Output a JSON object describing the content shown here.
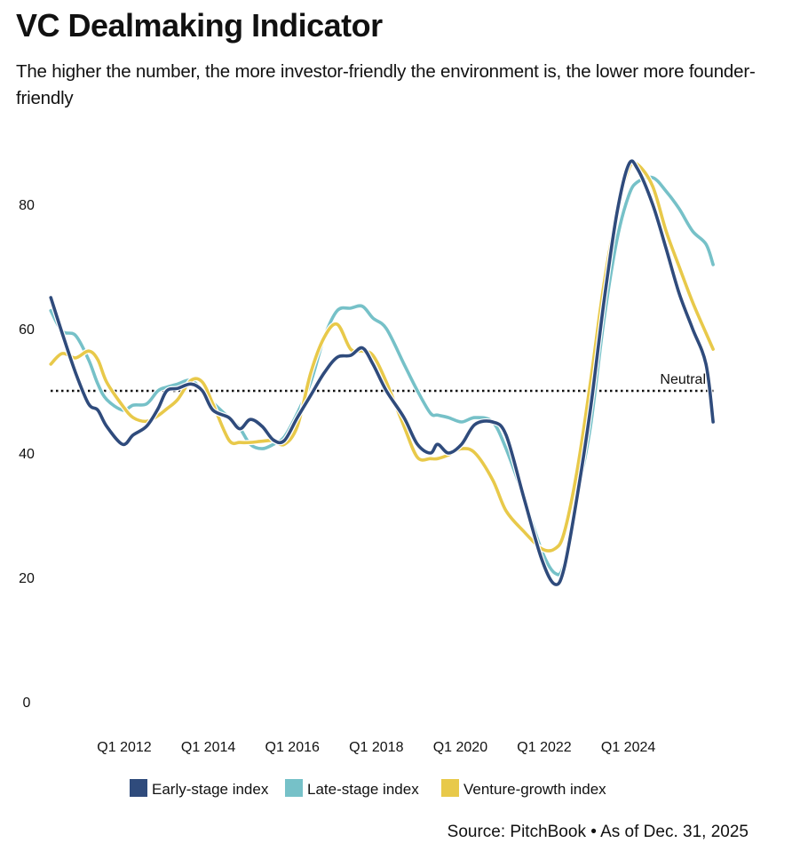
{
  "chart_data": {
    "type": "line",
    "title": "VC Dealmaking Indicator",
    "subtitle": "The higher the number, the more investor-friendly the environment is, the lower more founder-friendly",
    "xlabel": "",
    "ylabel": "",
    "ylim": [
      0,
      90
    ],
    "xlim": [
      2010.25,
      2026.02
    ],
    "yticks": [
      0,
      20,
      40,
      60,
      80
    ],
    "xticks": [
      {
        "value": 2012,
        "label": "Q1 2012"
      },
      {
        "value": 2014,
        "label": "Q1 2014"
      },
      {
        "value": 2016,
        "label": "Q1 2016"
      },
      {
        "value": 2018,
        "label": "Q1 2018"
      },
      {
        "value": 2020,
        "label": "Q1 2020"
      },
      {
        "value": 2022,
        "label": "Q1 2022"
      },
      {
        "value": 2024,
        "label": "Q1 2024"
      }
    ],
    "grid": false,
    "legend_position": "bottom",
    "reference_line": {
      "value": 50,
      "label": "Neutral",
      "color": "#111111"
    },
    "x": [
      2010.25,
      2010.52,
      2010.84,
      2011.15,
      2011.37,
      2011.58,
      2011.96,
      2012.21,
      2012.53,
      2012.8,
      2013.01,
      2013.27,
      2013.59,
      2013.86,
      2014.11,
      2014.49,
      2014.75,
      2015.0,
      2015.28,
      2015.55,
      2015.81,
      2016.12,
      2016.44,
      2016.76,
      2017.07,
      2017.39,
      2017.67,
      2017.92,
      2018.24,
      2018.66,
      2018.98,
      2019.29,
      2019.46,
      2019.72,
      2020.03,
      2020.35,
      2020.77,
      2021.09,
      2021.51,
      2021.94,
      2022.25,
      2022.47,
      2022.78,
      2023.1,
      2023.42,
      2023.73,
      2024.01,
      2024.22,
      2024.58,
      2024.9,
      2025.21,
      2025.53,
      2025.85,
      2026.02
    ],
    "series": [
      {
        "name": "Early-stage index",
        "color": "#2f4b7c",
        "values": [
          65,
          59.3,
          52.9,
          47.9,
          46.9,
          44.3,
          41.4,
          42.9,
          44.3,
          47.1,
          50,
          50.4,
          51.1,
          50,
          46.9,
          45.7,
          43.9,
          45.4,
          44.3,
          42.1,
          42,
          45.7,
          49.3,
          52.9,
          55.4,
          55.7,
          56.9,
          54.3,
          50,
          45.7,
          41.4,
          40,
          41.4,
          40,
          41.4,
          44.6,
          45,
          42.9,
          32.9,
          22.9,
          18.9,
          21.4,
          32.9,
          47.1,
          64.3,
          78.6,
          86.4,
          85.7,
          80,
          72.9,
          65.7,
          60,
          54.3,
          45
        ]
      },
      {
        "name": "Late-stage index",
        "color": "#76c1c8",
        "values": [
          62.9,
          59.6,
          58.9,
          55,
          51.1,
          48.6,
          46.9,
          47.7,
          47.9,
          50,
          50.6,
          51.1,
          51.7,
          50,
          48.1,
          45.7,
          44,
          41.4,
          40.7,
          41.4,
          42.6,
          46.4,
          51.4,
          58.6,
          62.9,
          63.3,
          63.6,
          61.7,
          60,
          54.3,
          50,
          46.4,
          46.1,
          45.7,
          45,
          45.7,
          45,
          40.7,
          32.9,
          24.3,
          20.7,
          22.1,
          32.9,
          44.3,
          61.4,
          74.3,
          81.4,
          83.6,
          84.3,
          82.1,
          79.3,
          75.7,
          73.6,
          70.3
        ]
      },
      {
        "name": "Venture-growth index",
        "color": "#e8c94a",
        "values": [
          54.3,
          56,
          55.3,
          56.4,
          55,
          51.4,
          47.6,
          45.7,
          45.1,
          46,
          47.1,
          48.6,
          51.7,
          51.4,
          47.9,
          42.1,
          41.7,
          41.7,
          41.9,
          42,
          41.4,
          44.3,
          52.9,
          58.6,
          60.7,
          56.7,
          56.4,
          55.7,
          51.4,
          44.3,
          39.3,
          39.1,
          39.1,
          39.7,
          40.7,
          40,
          35.7,
          30.7,
          27.4,
          24.6,
          24.6,
          27.1,
          37.1,
          51.4,
          67.1,
          78.6,
          85.7,
          86.4,
          82.9,
          75.7,
          70,
          64.3,
          59.3,
          56.7
        ]
      }
    ],
    "source": "Source: PitchBook • As of Dec. 31, 2025"
  }
}
